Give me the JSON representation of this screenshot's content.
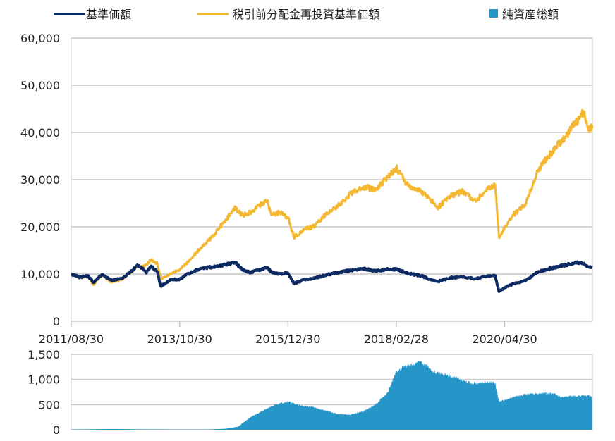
{
  "chart_data": [
    {
      "type": "line",
      "legend": [
        {
          "label": "基準価額",
          "color": "#0d2a63",
          "marker": "line"
        },
        {
          "label": "税引前分配金再投資基準価額",
          "color": "#f4b731",
          "marker": "line"
        },
        {
          "label": "純資産総額",
          "color": "#2695c8",
          "marker": "square"
        }
      ],
      "legend_placement": "top",
      "grid": true,
      "ylim": [
        0,
        60000
      ],
      "y_ticks": [
        "0",
        "10,000",
        "20,000",
        "30,000",
        "40,000",
        "50,000",
        "60,000"
      ],
      "x_ticks": [
        "2011/08/30",
        "2013/10/30",
        "2015/12/30",
        "2018/02/28",
        "2020/04/30"
      ],
      "x_start": "2011/08/30",
      "x_end": "2022/01/31",
      "series": [
        {
          "name": "基準価額",
          "color": "#0d2a63",
          "points": [
            [
              "2011/08/30",
              10000
            ],
            [
              "2011/10/31",
              9300
            ],
            [
              "2011/12/30",
              9600
            ],
            [
              "2012/02/10",
              8200
            ],
            [
              "2012/04/10",
              9900
            ],
            [
              "2012/06/15",
              8700
            ],
            [
              "2012/08/31",
              9000
            ],
            [
              "2012/10/31",
              10300
            ],
            [
              "2012/12/28",
              11800
            ],
            [
              "2013/01/31",
              11300
            ],
            [
              "2013/02/28",
              10200
            ],
            [
              "2013/04/05",
              11700
            ],
            [
              "2013/05/20",
              10500
            ],
            [
              "2013/06/14",
              7400
            ],
            [
              "2013/08/30",
              8800
            ],
            [
              "2013/10/30",
              8900
            ],
            [
              "2013/12/30",
              10000
            ],
            [
              "2014/03/31",
              11200
            ],
            [
              "2014/06/30",
              11500
            ],
            [
              "2014/09/30",
              12000
            ],
            [
              "2014/12/10",
              12500
            ],
            [
              "2015/01/30",
              10900
            ],
            [
              "2015/03/31",
              10300
            ],
            [
              "2015/05/29",
              10800
            ],
            [
              "2015/07/31",
              11400
            ],
            [
              "2015/08/31",
              10400
            ],
            [
              "2015/10/30",
              10000
            ],
            [
              "2015/12/30",
              10200
            ],
            [
              "2016/02/12",
              8000
            ],
            [
              "2016/04/28",
              8800
            ],
            [
              "2016/06/30",
              9000
            ],
            [
              "2016/09/30",
              9800
            ],
            [
              "2016/12/30",
              10300
            ],
            [
              "2017/03/31",
              10800
            ],
            [
              "2017/06/30",
              11200
            ],
            [
              "2017/09/29",
              10600
            ],
            [
              "2017/12/29",
              11000
            ],
            [
              "2018/02/28",
              11000
            ],
            [
              "2018/05/31",
              10100
            ],
            [
              "2018/08/31",
              9600
            ],
            [
              "2018/10/31",
              8900
            ],
            [
              "2018/12/25",
              8400
            ],
            [
              "2019/03/29",
              9200
            ],
            [
              "2019/06/28",
              9400
            ],
            [
              "2019/09/30",
              9000
            ],
            [
              "2019/12/30",
              9500
            ],
            [
              "2020/02/20",
              9700
            ],
            [
              "2020/03/19",
              6300
            ],
            [
              "2020/04/30",
              7100
            ],
            [
              "2020/06/30",
              7900
            ],
            [
              "2020/09/30",
              8600
            ],
            [
              "2020/12/30",
              10500
            ],
            [
              "2021/03/31",
              11200
            ],
            [
              "2021/06/30",
              11800
            ],
            [
              "2021/09/30",
              12400
            ],
            [
              "2021/11/30",
              12300
            ],
            [
              "2021/12/30",
              11500
            ],
            [
              "2022/01/31",
              11400
            ]
          ]
        },
        {
          "name": "税引前分配金再投資基準価額",
          "color": "#f4b731",
          "points": [
            [
              "2011/08/30",
              10000
            ],
            [
              "2011/10/31",
              9300
            ],
            [
              "2011/12/30",
              9500
            ],
            [
              "2012/02/10",
              7700
            ],
            [
              "2012/04/10",
              9800
            ],
            [
              "2012/06/15",
              8300
            ],
            [
              "2012/08/31",
              8700
            ],
            [
              "2012/10/31",
              10100
            ],
            [
              "2012/12/28",
              11800
            ],
            [
              "2013/01/31",
              11500
            ],
            [
              "2013/02/28",
              12000
            ],
            [
              "2013/04/05",
              13000
            ],
            [
              "2013/05/20",
              12200
            ],
            [
              "2013/06/14",
              9000
            ],
            [
              "2013/08/30",
              10000
            ],
            [
              "2013/10/30",
              11000
            ],
            [
              "2013/12/30",
              12500
            ],
            [
              "2014/03/31",
              15500
            ],
            [
              "2014/06/30",
              18000
            ],
            [
              "2014/09/30",
              21500
            ],
            [
              "2014/12/10",
              24000
            ],
            [
              "2015/01/30",
              22500
            ],
            [
              "2015/03/31",
              23000
            ],
            [
              "2015/05/29",
              24500
            ],
            [
              "2015/07/31",
              25500
            ],
            [
              "2015/08/31",
              22500
            ],
            [
              "2015/10/30",
              23000
            ],
            [
              "2015/12/30",
              22000
            ],
            [
              "2016/02/12",
              17800
            ],
            [
              "2016/04/28",
              19500
            ],
            [
              "2016/06/30",
              20000
            ],
            [
              "2016/09/30",
              22500
            ],
            [
              "2016/12/30",
              24500
            ],
            [
              "2017/03/31",
              27000
            ],
            [
              "2017/06/30",
              28500
            ],
            [
              "2017/09/29",
              28000
            ],
            [
              "2017/12/29",
              30500
            ],
            [
              "2018/02/28",
              32500
            ],
            [
              "2018/05/31",
              28500
            ],
            [
              "2018/08/31",
              27500
            ],
            [
              "2018/10/31",
              26000
            ],
            [
              "2018/12/25",
              24000
            ],
            [
              "2019/03/29",
              26500
            ],
            [
              "2019/06/28",
              27500
            ],
            [
              "2019/09/30",
              25500
            ],
            [
              "2019/12/30",
              28000
            ],
            [
              "2020/02/20",
              29000
            ],
            [
              "2020/03/19",
              17800
            ],
            [
              "2020/04/30",
              20000
            ],
            [
              "2020/06/30",
              22500
            ],
            [
              "2020/09/30",
              25000
            ],
            [
              "2020/12/30",
              32000
            ],
            [
              "2021/03/31",
              35500
            ],
            [
              "2021/06/30",
              38500
            ],
            [
              "2021/09/30",
              42000
            ],
            [
              "2021/11/30",
              44500
            ],
            [
              "2021/12/30",
              40500
            ],
            [
              "2022/01/31",
              41500
            ]
          ]
        }
      ]
    },
    {
      "type": "area",
      "grid": true,
      "ylim": [
        0,
        1500
      ],
      "y_ticks": [
        "0",
        "500",
        "1,000",
        "1,500"
      ],
      "x_start": "2011/08/30",
      "x_end": "2022/01/31",
      "series": [
        {
          "name": "純資産総額",
          "color": "#2695c8",
          "points": [
            [
              "2011/08/30",
              5
            ],
            [
              "2012/01/31",
              10
            ],
            [
              "2012/06/29",
              15
            ],
            [
              "2013/01/31",
              8
            ],
            [
              "2013/10/30",
              5
            ],
            [
              "2014/05/30",
              5
            ],
            [
              "2014/09/30",
              20
            ],
            [
              "2014/12/30",
              60
            ],
            [
              "2015/03/31",
              250
            ],
            [
              "2015/06/30",
              380
            ],
            [
              "2015/09/30",
              500
            ],
            [
              "2015/12/30",
              560
            ],
            [
              "2016/03/31",
              480
            ],
            [
              "2016/06/30",
              450
            ],
            [
              "2016/09/30",
              380
            ],
            [
              "2016/12/30",
              310
            ],
            [
              "2017/03/31",
              300
            ],
            [
              "2017/06/30",
              360
            ],
            [
              "2017/09/29",
              500
            ],
            [
              "2017/12/29",
              750
            ],
            [
              "2018/02/28",
              1150
            ],
            [
              "2018/04/27",
              1250
            ],
            [
              "2018/06/29",
              1300
            ],
            [
              "2018/08/31",
              1350
            ],
            [
              "2018/11/30",
              1150
            ],
            [
              "2019/02/28",
              1100
            ],
            [
              "2019/05/31",
              1020
            ],
            [
              "2019/08/30",
              920
            ],
            [
              "2019/12/30",
              950
            ],
            [
              "2020/02/20",
              930
            ],
            [
              "2020/03/19",
              560
            ],
            [
              "2020/06/30",
              650
            ],
            [
              "2020/09/30",
              700
            ],
            [
              "2020/12/30",
              720
            ],
            [
              "2021/03/31",
              730
            ],
            [
              "2021/06/30",
              650
            ],
            [
              "2021/09/30",
              670
            ],
            [
              "2021/12/30",
              680
            ],
            [
              "2022/01/31",
              650
            ]
          ]
        }
      ]
    }
  ]
}
